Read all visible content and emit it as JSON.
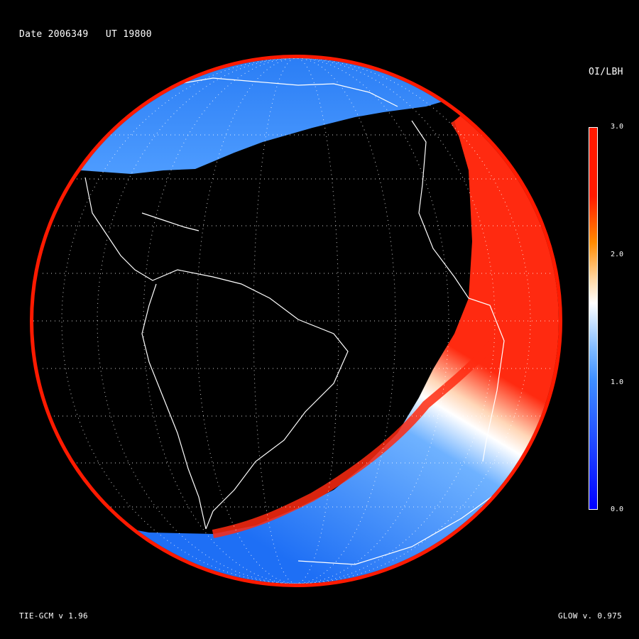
{
  "header": {
    "date_label": "Date 2006349   UT 19800"
  },
  "footer": {
    "model_label": "TIE-GCM v 1.96",
    "glow_label": "GLOW v. 0.975"
  },
  "colorbar": {
    "title": "OI/LBH",
    "ticks": [
      "3.0",
      "2.0",
      "1.0",
      "0.0"
    ],
    "colors": {
      "low": "#0000ff",
      "mid_blue": "#3f8fff",
      "mid": "#ffffff",
      "orange": "#ff8a00",
      "high": "#ff1a00"
    }
  },
  "map": {
    "background": "#000000",
    "night_color": "#000000",
    "coastline_color": "#ffffff",
    "grid_style": "dotted",
    "layers": [
      "oi-lbh-ratio",
      "coastlines",
      "lat-lon-grid",
      "terminator"
    ]
  }
}
